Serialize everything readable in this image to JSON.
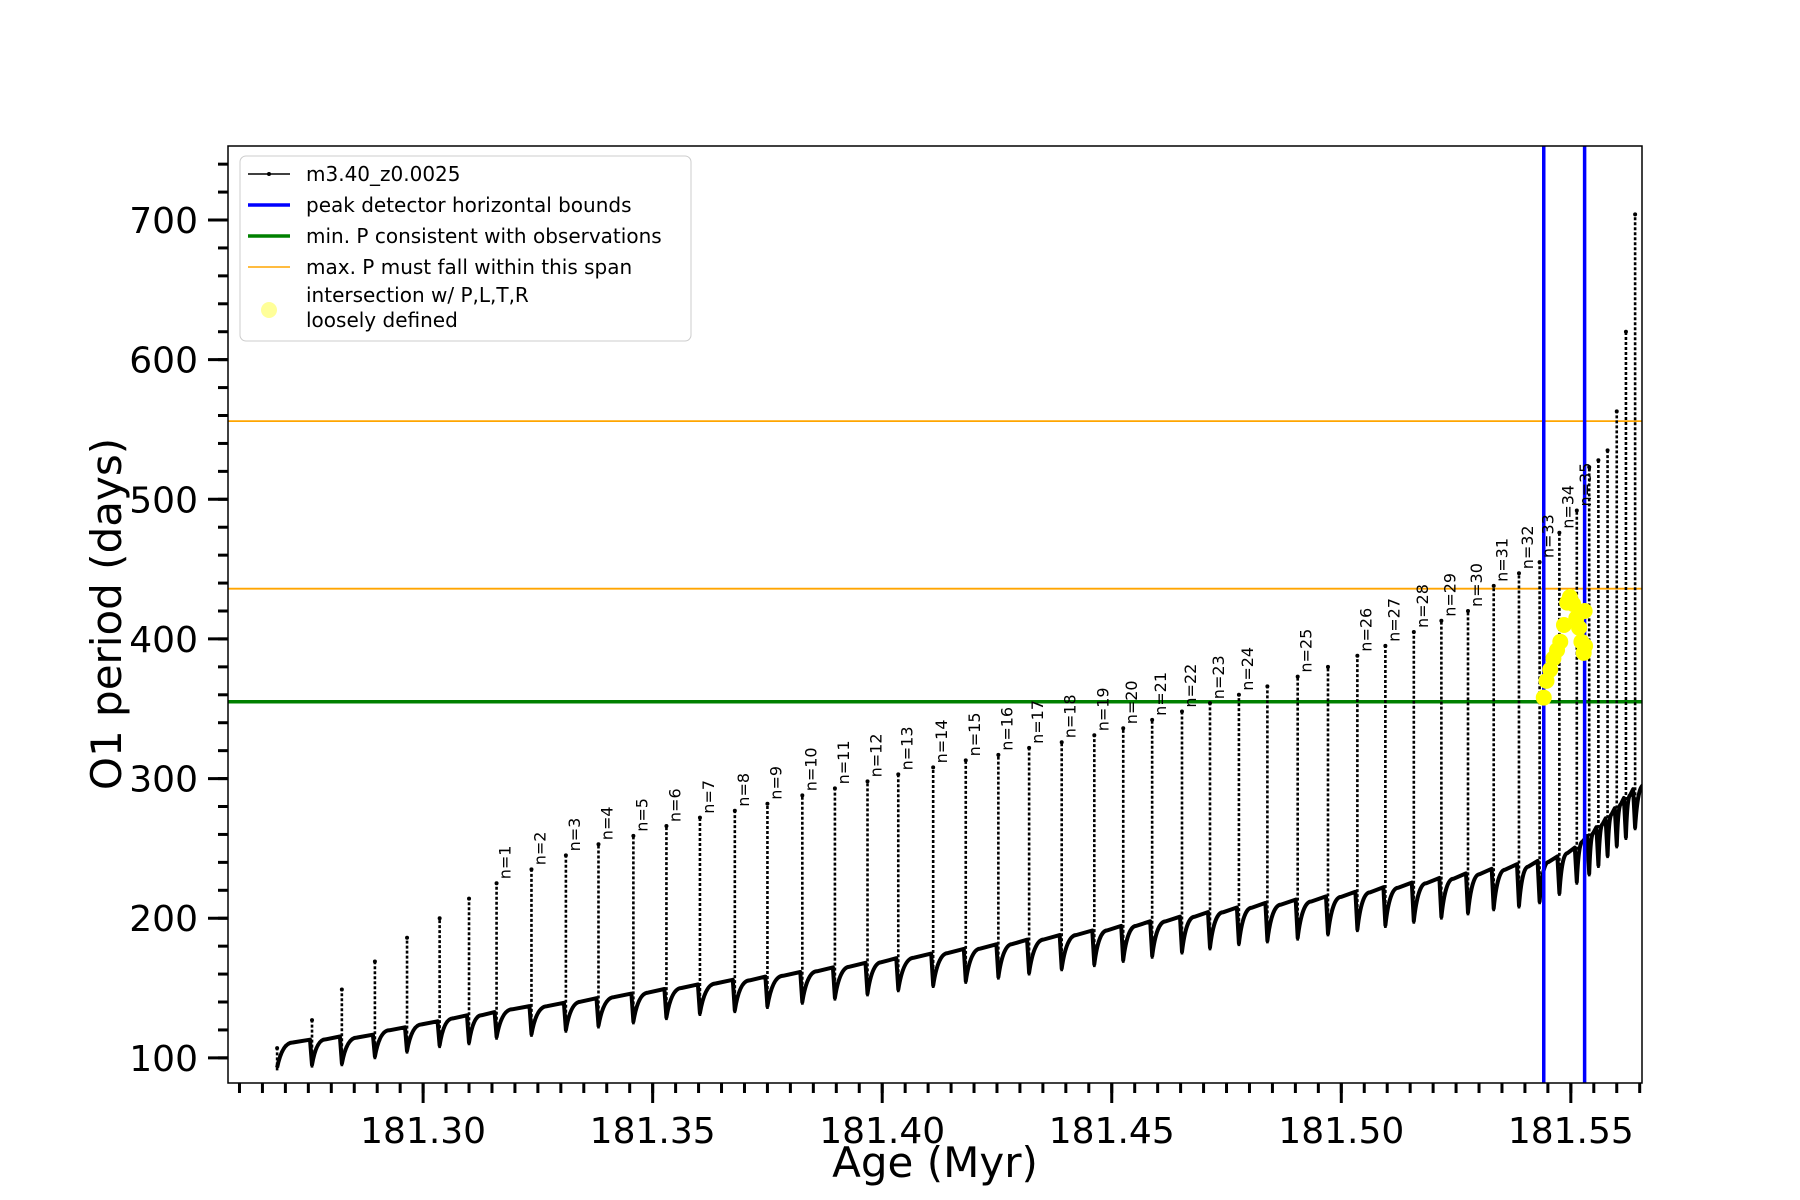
{
  "chart_data": {
    "type": "line",
    "xlabel": "Age (Myr)",
    "ylabel": "O1 period (days)",
    "xlim": [
      181.2575,
      181.5655
    ],
    "ylim": [
      82,
      753
    ],
    "xticks": [
      {
        "v": 181.3,
        "label": "181.30"
      },
      {
        "v": 181.35,
        "label": "181.35"
      },
      {
        "v": 181.4,
        "label": "181.40"
      },
      {
        "v": 181.45,
        "label": "181.45"
      },
      {
        "v": 181.5,
        "label": "181.50"
      },
      {
        "v": 181.55,
        "label": "181.55"
      }
    ],
    "yticks": [
      {
        "v": 100,
        "label": "100"
      },
      {
        "v": 200,
        "label": "200"
      },
      {
        "v": 300,
        "label": "300"
      },
      {
        "v": 400,
        "label": "400"
      },
      {
        "v": 500,
        "label": "500"
      },
      {
        "v": 600,
        "label": "600"
      },
      {
        "v": 700,
        "label": "700"
      }
    ],
    "x_minor_step": 0.005,
    "y_minor_step": 20,
    "grid": false,
    "legend_position": "top-left",
    "legend": [
      {
        "label": "m3.40_z0.0025",
        "style": "line-marker",
        "color": "#000000"
      },
      {
        "label": "peak detector horizontal bounds",
        "style": "line",
        "color": "#0000ff"
      },
      {
        "label": "min. P consistent with observations",
        "style": "line",
        "color": "#008000"
      },
      {
        "label": "max. P must fall within this span",
        "style": "thin-line",
        "color": "#ffa500"
      },
      {
        "label": "intersection w/ P,L,T,R",
        "label2": "loosely defined",
        "style": "dot",
        "color": "#ffff99"
      }
    ],
    "series_name": "m3.40_z0.0025",
    "pulses": [
      {
        "x": 181.2682,
        "base": 93,
        "peak": 107
      },
      {
        "x": 181.2758,
        "base": 95,
        "peak": 127
      },
      {
        "x": 181.2823,
        "base": 96,
        "peak": 149
      },
      {
        "x": 181.2895,
        "base": 101,
        "peak": 169
      },
      {
        "x": 181.2965,
        "base": 105,
        "peak": 186
      },
      {
        "x": 181.3036,
        "base": 109,
        "peak": 200
      },
      {
        "x": 181.31,
        "base": 111,
        "peak": 214
      },
      {
        "x": 181.316,
        "base": 115,
        "peak": 225,
        "n": "n=1"
      },
      {
        "x": 181.3236,
        "base": 117,
        "peak": 235,
        "n": "n=2"
      },
      {
        "x": 181.3311,
        "base": 120,
        "peak": 245,
        "n": "n=3"
      },
      {
        "x": 181.3382,
        "base": 123,
        "peak": 253,
        "n": "n=4"
      },
      {
        "x": 181.3458,
        "base": 126,
        "peak": 259,
        "n": "n=5"
      },
      {
        "x": 181.353,
        "base": 129,
        "peak": 266,
        "n": "n=6"
      },
      {
        "x": 181.3603,
        "base": 132,
        "peak": 272,
        "n": "n=7"
      },
      {
        "x": 181.3679,
        "base": 134,
        "peak": 277,
        "n": "n=8"
      },
      {
        "x": 181.375,
        "base": 137,
        "peak": 282,
        "n": "n=9"
      },
      {
        "x": 181.3826,
        "base": 140,
        "peak": 288,
        "n": "n=10"
      },
      {
        "x": 181.3897,
        "base": 143,
        "peak": 293,
        "n": "n=11"
      },
      {
        "x": 181.3968,
        "base": 146,
        "peak": 298,
        "n": "n=12"
      },
      {
        "x": 181.4035,
        "base": 149,
        "peak": 303,
        "n": "n=13"
      },
      {
        "x": 181.4111,
        "base": 152,
        "peak": 308,
        "n": "n=14"
      },
      {
        "x": 181.4182,
        "base": 155,
        "peak": 313,
        "n": "n=15"
      },
      {
        "x": 181.4253,
        "base": 158,
        "peak": 317,
        "n": "n=16"
      },
      {
        "x": 181.432,
        "base": 161,
        "peak": 322,
        "n": "n=17"
      },
      {
        "x": 181.4391,
        "base": 164,
        "peak": 326,
        "n": "n=18"
      },
      {
        "x": 181.4462,
        "base": 167,
        "peak": 331,
        "n": "n=19"
      },
      {
        "x": 181.4525,
        "base": 170,
        "peak": 336,
        "n": "n=20"
      },
      {
        "x": 181.4588,
        "base": 173,
        "peak": 342,
        "n": "n=21"
      },
      {
        "x": 181.4653,
        "base": 176,
        "peak": 348,
        "n": "n=22"
      },
      {
        "x": 181.4714,
        "base": 179,
        "peak": 354,
        "n": "n=23"
      },
      {
        "x": 181.4777,
        "base": 182,
        "peak": 360,
        "n": "n=24"
      },
      {
        "x": 181.4839,
        "base": 184,
        "peak": 366
      },
      {
        "x": 181.4905,
        "base": 186,
        "peak": 373,
        "n": "n=25"
      },
      {
        "x": 181.4971,
        "base": 189,
        "peak": 380
      },
      {
        "x": 181.5035,
        "base": 192,
        "peak": 388,
        "n": "n=26"
      },
      {
        "x": 181.5096,
        "base": 195,
        "peak": 395,
        "n": "n=27"
      },
      {
        "x": 181.5158,
        "base": 198,
        "peak": 405,
        "n": "n=28"
      },
      {
        "x": 181.5218,
        "base": 201,
        "peak": 413,
        "n": "n=29"
      },
      {
        "x": 181.5276,
        "base": 204,
        "peak": 420,
        "n": "n=30"
      },
      {
        "x": 181.5332,
        "base": 207,
        "peak": 438,
        "n": "n=31"
      },
      {
        "x": 181.5387,
        "base": 209,
        "peak": 447,
        "n": "n=32"
      },
      {
        "x": 181.5432,
        "base": 212,
        "peak": 455,
        "n": "n=33"
      },
      {
        "x": 181.5475,
        "base": 218,
        "peak": 476,
        "n": "n=34"
      },
      {
        "x": 181.5513,
        "base": 226,
        "peak": 492,
        "n": "n=35"
      },
      {
        "x": 181.554,
        "base": 232,
        "peak": 523
      },
      {
        "x": 181.556,
        "base": 238,
        "peak": 528
      },
      {
        "x": 181.558,
        "base": 245,
        "peak": 535
      },
      {
        "x": 181.56,
        "base": 252,
        "peak": 563
      },
      {
        "x": 181.562,
        "base": 258,
        "peak": 620
      },
      {
        "x": 181.564,
        "base": 265,
        "peak": 704
      }
    ],
    "h_lines": [
      {
        "y": 355,
        "color": "#008000",
        "kind": "min. P consistent with observations"
      },
      {
        "y": 436,
        "color": "#ffa500",
        "kind": "max. P must fall within this span"
      },
      {
        "y": 556,
        "color": "#ffa500",
        "kind": "max. P must fall within this span"
      }
    ],
    "v_lines": [
      {
        "x": 181.5441,
        "color": "#0000ff"
      },
      {
        "x": 181.553,
        "color": "#0000ff"
      }
    ],
    "yellow_points": [
      [
        181.5441,
        358
      ],
      [
        181.5447,
        370
      ],
      [
        181.5455,
        378
      ],
      [
        181.5462,
        386
      ],
      [
        181.547,
        392
      ],
      [
        181.5477,
        398
      ],
      [
        181.5485,
        410
      ],
      [
        181.5492,
        426
      ],
      [
        181.5498,
        430
      ],
      [
        181.5505,
        425
      ],
      [
        181.5512,
        415
      ],
      [
        181.5518,
        408
      ],
      [
        181.5523,
        398
      ],
      [
        181.5528,
        390
      ],
      [
        181.553,
        420
      ],
      [
        181.5531,
        395
      ]
    ]
  }
}
